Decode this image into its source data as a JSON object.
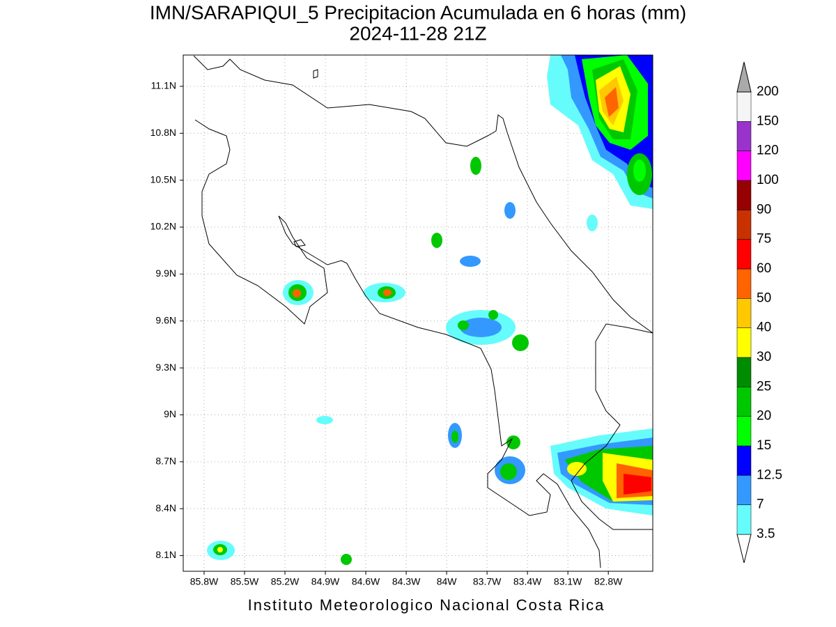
{
  "header": {
    "title": "IMN/SARAPIQUI_5 Precipitacion Acumulada en 6 horas (mm)",
    "subtitle": "2024-11-28 21Z"
  },
  "map": {
    "lat_range": [
      8.0,
      11.3
    ],
    "lon_range": [
      -85.955,
      -82.47
    ],
    "lat_ticks": [
      {
        "value": 11.1,
        "label": "11.1N"
      },
      {
        "value": 10.8,
        "label": "10.8N"
      },
      {
        "value": 10.5,
        "label": "10.5N"
      },
      {
        "value": 10.2,
        "label": "10.2N"
      },
      {
        "value": 9.9,
        "label": "9.9N"
      },
      {
        "value": 9.6,
        "label": "9.6N"
      },
      {
        "value": 9.3,
        "label": "9.3N"
      },
      {
        "value": 9,
        "label": "9N"
      },
      {
        "value": 8.7,
        "label": "8.7N"
      },
      {
        "value": 8.4,
        "label": "8.4N"
      },
      {
        "value": 8.1,
        "label": "8.1N"
      }
    ],
    "lon_ticks": [
      {
        "value": -85.8,
        "label": "85.8W"
      },
      {
        "value": -85.5,
        "label": "85.5W"
      },
      {
        "value": -85.2,
        "label": "85.2W"
      },
      {
        "value": -84.9,
        "label": "84.9W"
      },
      {
        "value": -84.6,
        "label": "84.6W"
      },
      {
        "value": -84.3,
        "label": "84.3W"
      },
      {
        "value": -84,
        "label": "84W"
      },
      {
        "value": -83.7,
        "label": "83.7W"
      },
      {
        "value": -83.4,
        "label": "83.4W"
      },
      {
        "value": -83.1,
        "label": "83.1W"
      },
      {
        "value": -82.8,
        "label": "82.8W"
      }
    ]
  },
  "colorbar": {
    "levels": [
      3.5,
      7,
      12.5,
      15,
      20,
      25,
      30,
      40,
      50,
      60,
      75,
      90,
      100,
      120,
      150,
      200
    ],
    "colors": [
      "#ffffff",
      "#66fcfc",
      "#3399ff",
      "#0000ff",
      "#00ff00",
      "#00c800",
      "#008c00",
      "#ffff00",
      "#ffc800",
      "#ff6400",
      "#ff0000",
      "#c83200",
      "#960000",
      "#ff00ff",
      "#9933cc",
      "#f5f5f5",
      "#aaaaaa"
    ]
  },
  "footer": "Instituto Meteorologico Nacional Costa Rica"
}
